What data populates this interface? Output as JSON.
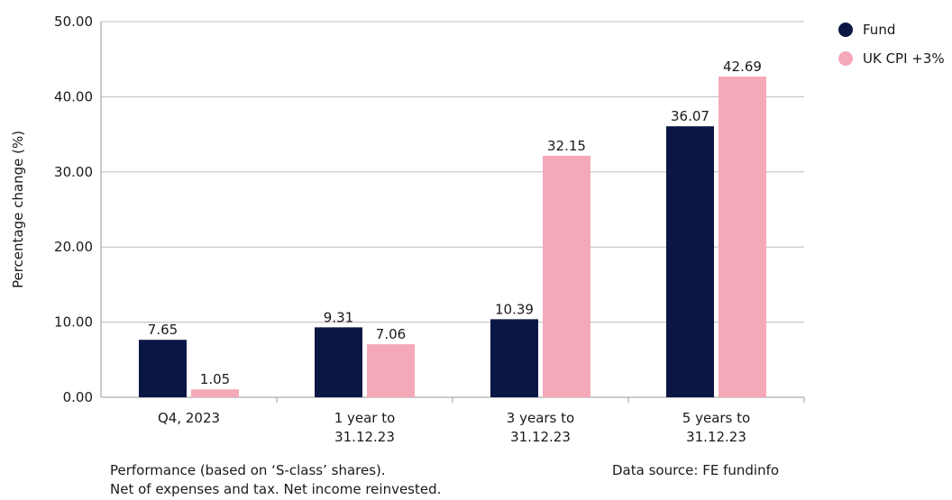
{
  "colors": {
    "fund": "#0a1744",
    "cpi": "#f5a9b8",
    "axis": "#9a9a9a",
    "grid": "#bdbdbd"
  },
  "legend": [
    {
      "label": "Fund",
      "color": "#0a1744"
    },
    {
      "label": "UK CPI +3%",
      "color": "#f5a9b8"
    }
  ],
  "chart_data": {
    "type": "bar",
    "categories": [
      [
        "Q4, 2023"
      ],
      [
        "1 year to",
        "31.12.23"
      ],
      [
        "3 years to",
        "31.12.23"
      ],
      [
        "5 years to",
        "31.12.23"
      ]
    ],
    "series": [
      {
        "name": "Fund",
        "values": [
          7.65,
          9.31,
          10.39,
          36.07
        ],
        "labels": [
          "7.65",
          "9.31",
          "10.39",
          "36.07"
        ]
      },
      {
        "name": "UK CPI +3%",
        "values": [
          1.05,
          7.06,
          32.15,
          42.69
        ],
        "labels": [
          "1.05",
          "7.06",
          "32.15",
          "42.69"
        ]
      }
    ],
    "ylabel": "Percentage change (%)",
    "ylim": [
      0,
      50
    ],
    "yticks": [
      "0.00",
      "10.00",
      "20.00",
      "30.00",
      "40.00",
      "50.00"
    ],
    "grid": true,
    "legend_position": "top-right"
  },
  "footnotes": {
    "performance_line1": "Performance (based on ‘S-class’ shares).",
    "performance_line2": "Net of expenses and tax. Net income reinvested.",
    "source": "Data source: FE fundinfo"
  }
}
